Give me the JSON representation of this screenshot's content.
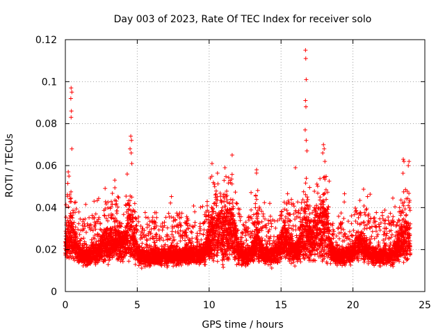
{
  "chart_data": {
    "type": "scatter",
    "title": "Day 003 of 2023, Rate Of TEC Index for receiver solo",
    "xlabel": "GPS time / hours",
    "ylabel": "ROTI / TECUs",
    "xlim": [
      0,
      25
    ],
    "ylim": [
      0,
      0.12
    ],
    "xticks": [
      0,
      5,
      10,
      15,
      20,
      25
    ],
    "yticks": [
      0,
      0.02,
      0.04,
      0.06,
      0.08,
      0.1,
      0.12
    ],
    "xtick_labels": [
      "0",
      "5",
      "10",
      "15",
      "20",
      "25"
    ],
    "ytick_labels": [
      "0",
      "0.02",
      "0.04",
      "0.06",
      "0.08",
      "0.1",
      "0.12"
    ],
    "grid": true,
    "marker": "+",
    "series_color": "#ff0000",
    "data_x_range": [
      0,
      24
    ],
    "typical_band": [
      0.005,
      0.04
    ],
    "outliers": [
      {
        "x": 0.4,
        "y": 0.097
      },
      {
        "x": 0.45,
        "y": 0.095
      },
      {
        "x": 0.38,
        "y": 0.092
      },
      {
        "x": 0.42,
        "y": 0.086
      },
      {
        "x": 0.4,
        "y": 0.083
      },
      {
        "x": 0.45,
        "y": 0.068
      },
      {
        "x": 0.2,
        "y": 0.057
      },
      {
        "x": 0.25,
        "y": 0.055
      },
      {
        "x": 4.55,
        "y": 0.074
      },
      {
        "x": 4.6,
        "y": 0.072
      },
      {
        "x": 4.5,
        "y": 0.068
      },
      {
        "x": 4.58,
        "y": 0.066
      },
      {
        "x": 4.62,
        "y": 0.061
      },
      {
        "x": 4.3,
        "y": 0.056
      },
      {
        "x": 10.2,
        "y": 0.061
      },
      {
        "x": 11.6,
        "y": 0.065
      },
      {
        "x": 11.1,
        "y": 0.059
      },
      {
        "x": 13.3,
        "y": 0.058
      },
      {
        "x": 16.7,
        "y": 0.115
      },
      {
        "x": 16.72,
        "y": 0.111
      },
      {
        "x": 16.75,
        "y": 0.101
      },
      {
        "x": 16.7,
        "y": 0.091
      },
      {
        "x": 16.73,
        "y": 0.088
      },
      {
        "x": 16.68,
        "y": 0.077
      },
      {
        "x": 16.75,
        "y": 0.072
      },
      {
        "x": 16.8,
        "y": 0.067
      },
      {
        "x": 16.0,
        "y": 0.059
      },
      {
        "x": 17.95,
        "y": 0.07
      },
      {
        "x": 18.0,
        "y": 0.068
      },
      {
        "x": 17.9,
        "y": 0.066
      },
      {
        "x": 18.05,
        "y": 0.062
      },
      {
        "x": 23.5,
        "y": 0.063
      },
      {
        "x": 23.55,
        "y": 0.062
      },
      {
        "x": 23.9,
        "y": 0.062
      },
      {
        "x": 23.85,
        "y": 0.06
      }
    ],
    "peaks": [
      {
        "x": 0.4,
        "w": 0.4,
        "h": 0.018
      },
      {
        "x": 2.9,
        "w": 0.5,
        "h": 0.012
      },
      {
        "x": 3.7,
        "w": 0.4,
        "h": 0.012
      },
      {
        "x": 4.5,
        "w": 0.4,
        "h": 0.02
      },
      {
        "x": 10.3,
        "w": 0.5,
        "h": 0.02
      },
      {
        "x": 11.0,
        "w": 0.5,
        "h": 0.016
      },
      {
        "x": 11.6,
        "w": 0.4,
        "h": 0.018
      },
      {
        "x": 13.3,
        "w": 0.3,
        "h": 0.014
      },
      {
        "x": 15.3,
        "w": 0.5,
        "h": 0.014
      },
      {
        "x": 16.7,
        "w": 0.4,
        "h": 0.022
      },
      {
        "x": 17.5,
        "w": 0.4,
        "h": 0.016
      },
      {
        "x": 18.0,
        "w": 0.4,
        "h": 0.022
      },
      {
        "x": 20.5,
        "w": 0.5,
        "h": 0.01
      },
      {
        "x": 23.6,
        "w": 0.5,
        "h": 0.018
      }
    ],
    "num_points": 7000,
    "seed": 3
  }
}
